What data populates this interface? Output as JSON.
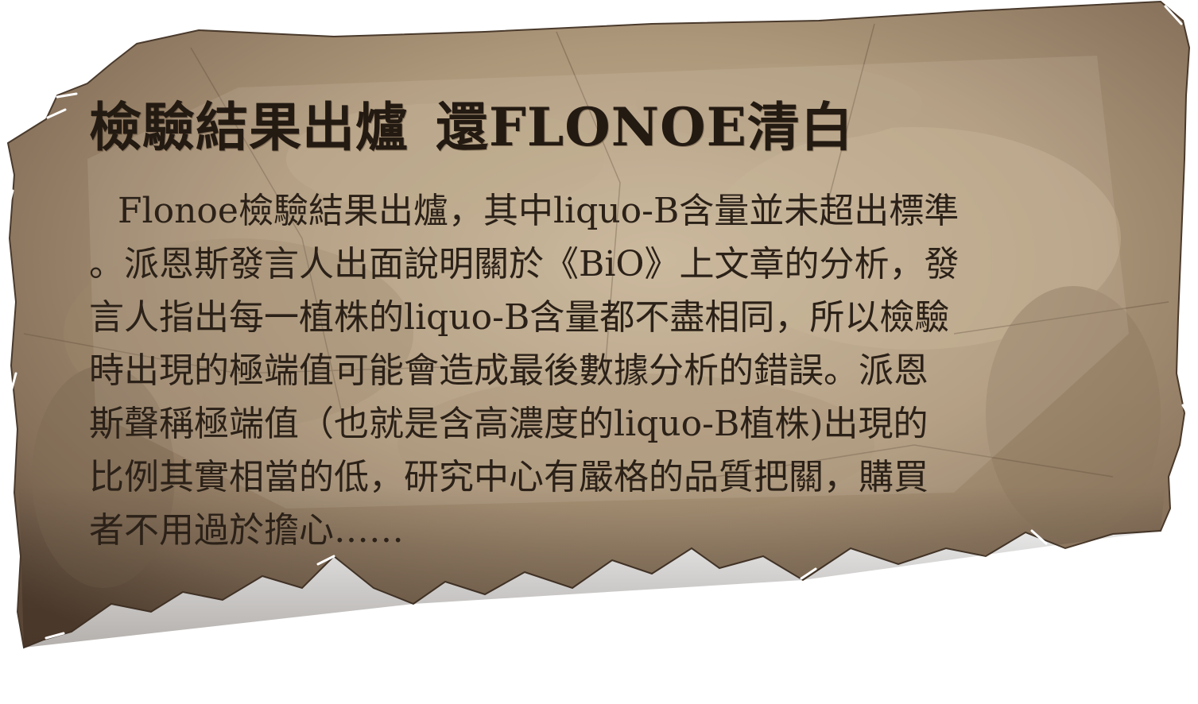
{
  "article": {
    "headline_part1": "檢驗結果出爐",
    "headline_part2": "還FLONOE清白",
    "body_lines": [
      "Flonoe檢驗結果出爐，其中liquo-B含量並未超出標準",
      "。派恩斯發言人出面說明關於《BiO》上文章的分析，發",
      "言人指出每一植株的liquo-B含量都不盡相同，所以檢驗",
      "時出現的極端值可能會造成最後數據分析的錯誤。派恩",
      "斯聲稱極端值（也就是含高濃度的liquo-B植株)出現的",
      "比例其實相當的低，研究中心有嚴格的品質把關，購買",
      "者不用過於擔心……"
    ]
  },
  "colors": {
    "paper_light": "#b9a486",
    "paper_mid": "#9a8468",
    "paper_dark": "#5e4a38",
    "ink": "#2b2118"
  }
}
